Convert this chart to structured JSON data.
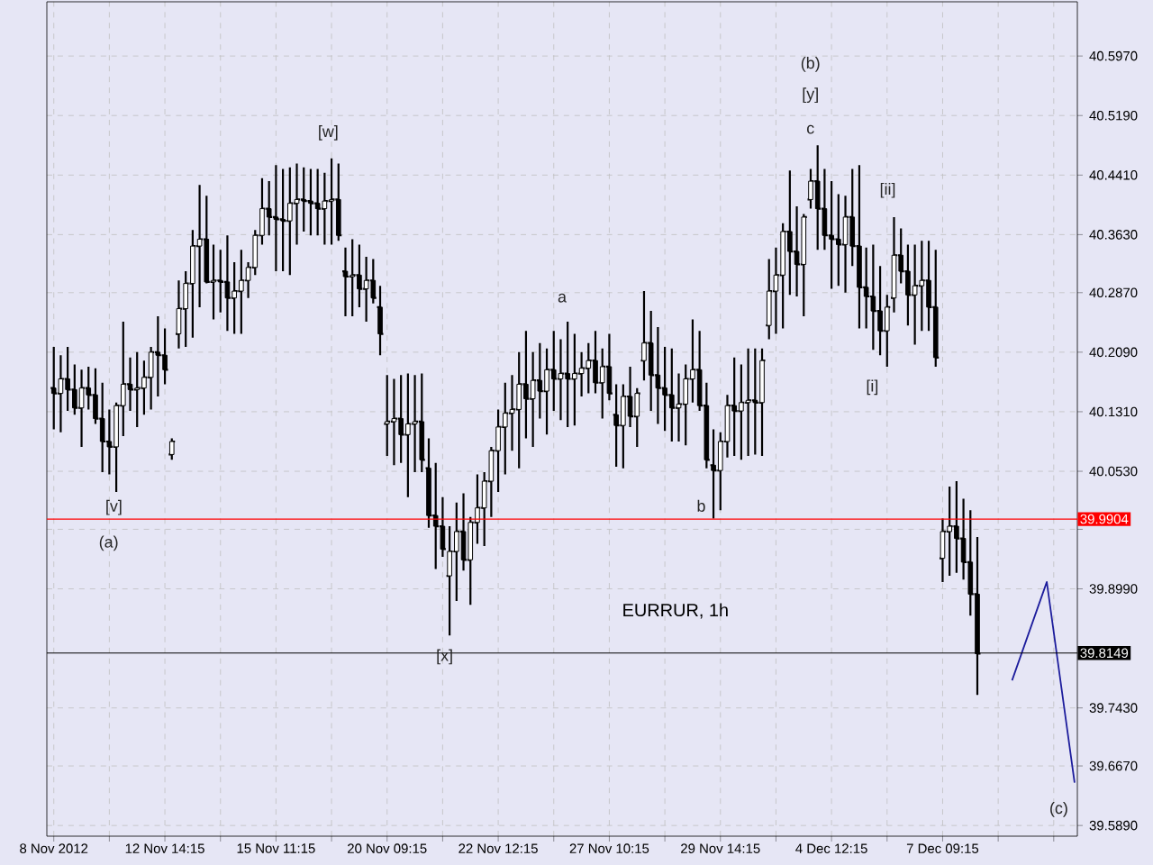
{
  "chart_data": {
    "type": "candlestick",
    "title": "EURRUR, 1h",
    "ylim": [
      39.575,
      40.668
    ],
    "grid": true,
    "categories": [
      "8 Nov 2012",
      null,
      null,
      null,
      null,
      null,
      null,
      null,
      null,
      null,
      null,
      null,
      null,
      null,
      null,
      null,
      "12 Nov 14:15",
      null,
      null,
      null,
      null,
      null,
      null,
      null,
      null,
      null,
      null,
      null,
      null,
      null,
      null,
      null,
      "15 Nov 11:15",
      null,
      null,
      null,
      null,
      null,
      null,
      null,
      null,
      null,
      null,
      null,
      null,
      null,
      null,
      null,
      "20 Nov 09:15",
      null,
      null,
      null,
      null,
      null,
      null,
      null,
      null,
      null,
      null,
      null,
      null,
      null,
      null,
      null,
      "22 Nov 12:15",
      null,
      null,
      null,
      null,
      null,
      null,
      null,
      null,
      null,
      null,
      null,
      null,
      null,
      null,
      null,
      "27 Nov 10:15",
      null,
      null,
      null,
      null,
      null,
      null,
      null,
      null,
      null,
      null,
      null,
      null,
      null,
      null,
      null,
      "29 Nov 14:15",
      null,
      null,
      null,
      null,
      null,
      null,
      null,
      null,
      null,
      null,
      null,
      null,
      null,
      null,
      null,
      "4 Dec 12:15",
      null,
      null,
      null,
      null,
      null,
      null,
      null,
      null,
      null,
      null,
      null,
      null,
      null,
      null,
      null,
      "7 Dec 09:15",
      null,
      null,
      null,
      null,
      null,
      null,
      null,
      null,
      null,
      null,
      null,
      null,
      null,
      null,
      null,
      null,
      null,
      null,
      null
    ],
    "yticks": [
      {
        "value": 40.597,
        "label": "40.5970"
      },
      {
        "value": 40.519,
        "label": "40.5190"
      },
      {
        "value": 40.441,
        "label": "40.4410"
      },
      {
        "value": 40.363,
        "label": "40.3630"
      },
      {
        "value": 40.287,
        "label": "40.2870"
      },
      {
        "value": 40.209,
        "label": "40.2090"
      },
      {
        "value": 40.131,
        "label": "40.1310"
      },
      {
        "value": 40.053,
        "label": "40.0530"
      },
      {
        "value": 39.977,
        "label": null
      },
      {
        "value": 39.899,
        "label": "39.8990"
      },
      {
        "value": 39.743,
        "label": "39.7430"
      },
      {
        "value": 39.667,
        "label": "39.6670"
      },
      {
        "value": 39.589,
        "label": "39.5890"
      }
    ],
    "ref_lines": [
      {
        "axis": "y",
        "value": 39.9904,
        "label": "39.9904",
        "color": "#ff0000"
      },
      {
        "axis": "y",
        "value": 39.8149,
        "label": "39.8149",
        "color": "#000000"
      }
    ],
    "annotations": [
      "[v]",
      "(a)",
      "[w]",
      "[x]",
      "a",
      "b",
      "(b)",
      "[y]",
      "c",
      "[ii]",
      "[i]",
      "(c)"
    ],
    "series": [
      {
        "color": "#000000",
        "ohlc": [
          [
            40.162,
            40.216,
            40.108,
            40.155
          ],
          [
            40.155,
            40.205,
            40.104,
            40.174
          ],
          [
            40.174,
            40.216,
            40.132,
            40.16
          ],
          [
            40.16,
            40.193,
            40.127,
            40.136
          ],
          [
            40.136,
            40.186,
            40.085,
            40.162
          ],
          [
            40.162,
            40.19,
            40.134,
            40.153
          ],
          [
            40.153,
            40.188,
            40.115,
            40.122
          ],
          [
            40.122,
            40.169,
            40.052,
            40.092
          ],
          [
            40.092,
            40.134,
            40.049,
            40.085
          ],
          [
            40.085,
            40.143,
            40.026,
            40.139
          ],
          [
            40.139,
            40.249,
            40.099,
            40.167
          ],
          [
            40.167,
            40.202,
            40.132,
            40.16
          ],
          [
            40.16,
            40.209,
            40.111,
            40.162
          ],
          [
            40.162,
            40.198,
            40.127,
            40.176
          ],
          [
            40.176,
            40.216,
            40.134,
            40.209
          ],
          [
            40.209,
            40.256,
            40.151,
            40.205
          ],
          [
            40.205,
            40.24,
            40.167,
            40.186
          ],
          [
            40.075,
            40.096,
            40.068,
            40.092
          ],
          [
            40.233,
            40.303,
            40.214,
            40.266
          ],
          [
            40.266,
            40.315,
            40.216,
            40.299
          ],
          [
            40.299,
            40.369,
            40.228,
            40.348
          ],
          [
            40.348,
            40.428,
            40.268,
            40.357
          ],
          [
            40.357,
            40.414,
            40.299,
            40.301
          ],
          [
            40.301,
            40.35,
            40.252,
            40.303
          ],
          [
            40.303,
            40.343,
            40.261,
            40.301
          ],
          [
            40.301,
            40.362,
            40.237,
            40.28
          ],
          [
            40.28,
            40.327,
            40.233,
            40.289
          ],
          [
            40.289,
            40.343,
            40.233,
            40.303
          ],
          [
            40.303,
            40.327,
            40.28,
            40.32
          ],
          [
            40.32,
            40.369,
            40.31,
            40.362
          ],
          [
            40.362,
            40.437,
            40.35,
            40.397
          ],
          [
            40.397,
            40.433,
            40.362,
            40.386
          ],
          [
            40.386,
            40.454,
            40.315,
            40.383
          ],
          [
            40.383,
            40.449,
            40.315,
            40.381
          ],
          [
            40.381,
            40.451,
            40.31,
            40.404
          ],
          [
            40.404,
            40.456,
            40.35,
            40.409
          ],
          [
            40.409,
            40.451,
            40.367,
            40.407
          ],
          [
            40.407,
            40.449,
            40.362,
            40.404
          ],
          [
            40.404,
            40.449,
            40.362,
            40.397
          ],
          [
            40.397,
            40.444,
            40.35,
            40.407
          ],
          [
            40.407,
            40.463,
            40.35,
            40.409
          ],
          [
            40.409,
            40.456,
            40.355,
            40.362
          ],
          [
            40.315,
            40.346,
            40.256,
            40.308
          ],
          [
            40.308,
            40.357,
            40.256,
            40.31
          ],
          [
            40.31,
            40.35,
            40.268,
            40.292
          ],
          [
            40.292,
            40.334,
            40.249,
            40.303
          ],
          [
            40.303,
            40.331,
            40.273,
            40.28
          ],
          [
            40.268,
            40.296,
            40.205,
            40.233
          ],
          [
            40.115,
            40.179,
            40.073,
            40.118
          ],
          [
            40.118,
            40.174,
            40.061,
            40.122
          ],
          [
            40.122,
            40.179,
            40.064,
            40.101
          ],
          [
            40.101,
            40.181,
            40.019,
            40.115
          ],
          [
            40.115,
            40.179,
            40.052,
            40.118
          ],
          [
            40.118,
            40.181,
            40.052,
            40.068
          ],
          [
            40.057,
            40.096,
            39.979,
            39.995
          ],
          [
            39.995,
            40.064,
            39.925,
            39.981
          ],
          [
            39.981,
            40.019,
            39.941,
            39.951
          ],
          [
            39.916,
            39.981,
            39.838,
            39.948
          ],
          [
            39.948,
            40.012,
            39.883,
            39.974
          ],
          [
            39.974,
            40.024,
            39.923,
            39.937
          ],
          [
            39.937,
            39.993,
            39.878,
            39.986
          ],
          [
            39.986,
            40.049,
            39.958,
            40.005
          ],
          [
            40.005,
            40.052,
            39.955,
            40.04
          ],
          [
            40.04,
            40.085,
            39.993,
            40.08
          ],
          [
            40.08,
            40.134,
            40.026,
            40.111
          ],
          [
            40.111,
            40.169,
            40.049,
            40.129
          ],
          [
            40.129,
            40.179,
            40.08,
            40.134
          ],
          [
            40.134,
            40.209,
            40.057,
            40.167
          ],
          [
            40.167,
            40.237,
            40.096,
            40.148
          ],
          [
            40.148,
            40.209,
            40.085,
            40.172
          ],
          [
            40.172,
            40.221,
            40.122,
            40.158
          ],
          [
            40.158,
            40.214,
            40.101,
            40.186
          ],
          [
            40.186,
            40.237,
            40.132,
            40.174
          ],
          [
            40.174,
            40.226,
            40.12,
            40.181
          ],
          [
            40.181,
            40.249,
            40.111,
            40.174
          ],
          [
            40.174,
            40.233,
            40.113,
            40.181
          ],
          [
            40.181,
            40.209,
            40.151,
            40.188
          ],
          [
            40.188,
            40.221,
            40.155,
            40.198
          ],
          [
            40.198,
            40.237,
            40.155,
            40.169
          ],
          [
            40.169,
            40.214,
            40.122,
            40.19
          ],
          [
            40.19,
            40.233,
            40.146,
            40.155
          ],
          [
            40.127,
            40.167,
            40.059,
            40.113
          ],
          [
            40.113,
            40.167,
            40.057,
            40.151
          ],
          [
            40.151,
            40.19,
            40.111,
            40.125
          ],
          [
            40.125,
            40.162,
            40.085,
            40.155
          ],
          [
            40.198,
            40.289,
            40.172,
            40.221
          ],
          [
            40.221,
            40.263,
            40.132,
            40.179
          ],
          [
            40.179,
            40.242,
            40.115,
            40.162
          ],
          [
            40.162,
            40.216,
            40.106,
            40.153
          ],
          [
            40.153,
            40.214,
            40.092,
            40.136
          ],
          [
            40.136,
            40.181,
            40.092,
            40.141
          ],
          [
            40.141,
            40.193,
            40.087,
            40.174
          ],
          [
            40.174,
            40.252,
            40.143,
            40.186
          ],
          [
            40.186,
            40.237,
            40.132,
            40.139
          ],
          [
            40.139,
            40.169,
            40.057,
            40.068
          ],
          [
            40.061,
            40.108,
            39.991,
            40.054
          ],
          [
            40.054,
            40.104,
            40.002,
            40.092
          ],
          [
            40.092,
            40.153,
            40.071,
            40.139
          ],
          [
            40.139,
            40.202,
            40.073,
            40.132
          ],
          [
            40.132,
            40.193,
            40.068,
            40.143
          ],
          [
            40.143,
            40.214,
            40.073,
            40.146
          ],
          [
            40.146,
            40.214,
            40.075,
            40.143
          ],
          [
            40.143,
            40.214,
            40.073,
            40.198
          ],
          [
            40.244,
            40.331,
            40.226,
            40.289
          ],
          [
            40.289,
            40.346,
            40.233,
            40.31
          ],
          [
            40.31,
            40.378,
            40.24,
            40.367
          ],
          [
            40.367,
            40.447,
            40.284,
            40.341
          ],
          [
            40.341,
            40.4,
            40.282,
            40.324
          ],
          [
            40.324,
            40.39,
            40.256,
            40.386
          ],
          [
            40.409,
            40.449,
            40.397,
            40.433
          ],
          [
            40.433,
            40.48,
            40.343,
            40.397
          ],
          [
            40.397,
            40.449,
            40.343,
            40.362
          ],
          [
            40.362,
            40.433,
            40.292,
            40.357
          ],
          [
            40.357,
            40.416,
            40.296,
            40.35
          ],
          [
            40.35,
            40.414,
            40.287,
            40.386
          ],
          [
            40.386,
            40.449,
            40.322,
            40.348
          ],
          [
            40.348,
            40.454,
            40.24,
            40.294
          ],
          [
            40.294,
            40.346,
            40.24,
            40.282
          ],
          [
            40.282,
            40.35,
            40.212,
            40.263
          ],
          [
            40.263,
            40.322,
            40.205,
            40.237
          ],
          [
            40.237,
            40.284,
            40.19,
            40.268
          ],
          [
            40.28,
            40.386,
            40.261,
            40.336
          ],
          [
            40.336,
            40.371,
            40.299,
            40.315
          ],
          [
            40.315,
            40.35,
            40.244,
            40.284
          ],
          [
            40.284,
            40.35,
            40.219,
            40.296
          ],
          [
            40.296,
            40.355,
            40.237,
            40.303
          ],
          [
            40.303,
            40.355,
            40.237,
            40.268
          ],
          [
            40.268,
            40.343,
            40.19,
            40.202
          ],
          [
            39.939,
            39.991,
            39.908,
            39.974
          ],
          [
            39.974,
            40.033,
            39.916,
            39.981
          ],
          [
            39.981,
            40.04,
            39.92,
            39.965
          ],
          [
            39.965,
            40.017,
            39.911,
            39.934
          ],
          [
            39.934,
            40.002,
            39.864,
            39.892
          ],
          [
            39.892,
            39.967,
            39.76,
            39.814
          ],
          null,
          null,
          null,
          null,
          null,
          null,
          null,
          null,
          null,
          null,
          null,
          null,
          null,
          null
        ]
      },
      {
        "type": "line",
        "color": "#1c1c9c",
        "values": [
          null,
          null,
          null,
          null,
          null,
          null,
          null,
          null,
          null,
          null,
          null,
          null,
          null,
          null,
          null,
          null,
          null,
          null,
          null,
          null,
          null,
          null,
          null,
          null,
          null,
          null,
          null,
          null,
          null,
          null,
          null,
          null,
          null,
          null,
          null,
          null,
          null,
          null,
          null,
          null,
          null,
          null,
          null,
          null,
          null,
          null,
          null,
          null,
          null,
          null,
          null,
          null,
          null,
          null,
          null,
          null,
          null,
          null,
          null,
          null,
          null,
          null,
          null,
          null,
          null,
          null,
          null,
          null,
          null,
          null,
          null,
          null,
          null,
          null,
          null,
          null,
          null,
          null,
          null,
          null,
          null,
          null,
          null,
          null,
          null,
          null,
          null,
          null,
          null,
          null,
          null,
          null,
          null,
          null,
          null,
          null,
          null,
          null,
          null,
          null,
          null,
          null,
          null,
          null,
          null,
          null,
          null,
          null,
          null,
          null,
          null,
          null,
          null,
          null,
          null,
          null,
          null,
          null,
          null,
          null,
          null,
          null,
          null,
          null,
          null,
          null,
          null,
          null,
          null,
          null,
          null,
          null,
          null,
          null,
          null,
          null,
          null,
          null,
          39.779,
          null,
          null,
          null,
          null,
          39.908,
          null,
          null,
          null,
          39.645
        ]
      }
    ]
  }
}
